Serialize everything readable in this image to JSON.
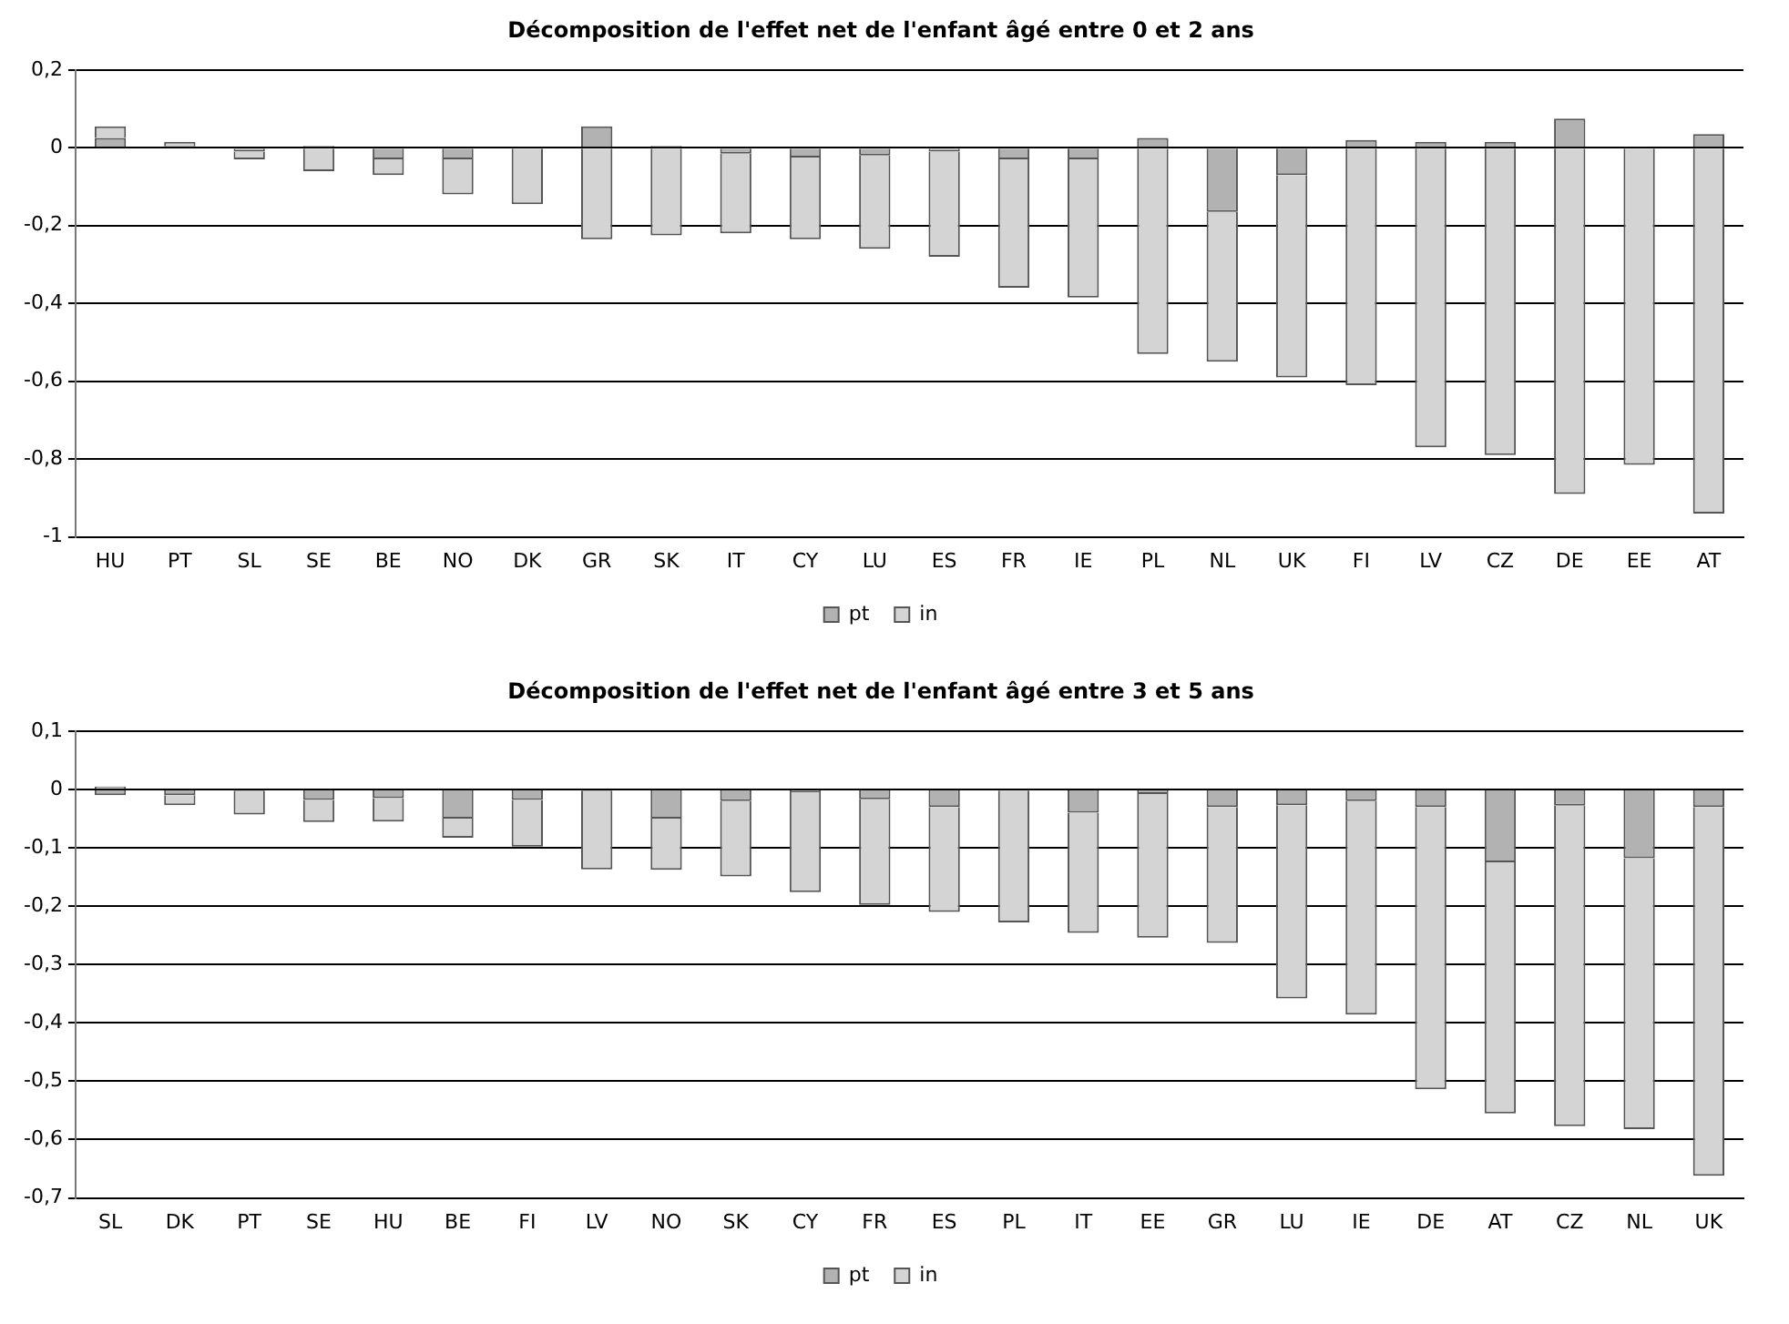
{
  "chart_data": [
    {
      "type": "bar",
      "title": "Décomposition de l'effet net de l'enfant âgé entre 0 et 2 ans",
      "categories": [
        "HU",
        "PT",
        "SL",
        "SE",
        "BE",
        "NO",
        "DK",
        "GR",
        "SK",
        "IT",
        "CY",
        "LU",
        "ES",
        "FR",
        "IE",
        "PL",
        "NL",
        "UK",
        "FI",
        "LV",
        "CZ",
        "DE",
        "EE",
        "AT"
      ],
      "series": [
        {
          "name": "pt",
          "color": "#b2b2b2",
          "values": [
            0.025,
            0.005,
            -0.01,
            0.005,
            -0.03,
            -0.03,
            0.003,
            0.055,
            0.005,
            -0.015,
            -0.025,
            -0.02,
            -0.01,
            -0.03,
            -0.03,
            0.025,
            -0.165,
            -0.07,
            0.02,
            0.015,
            0.015,
            0.075,
            0.003,
            0.035
          ]
        },
        {
          "name": "in",
          "color": "#d4d4d4",
          "values": [
            0.03,
            0.01,
            -0.02,
            -0.06,
            -0.04,
            -0.09,
            -0.145,
            -0.235,
            -0.225,
            -0.205,
            -0.21,
            -0.24,
            -0.27,
            -0.33,
            -0.355,
            -0.53,
            -0.385,
            -0.52,
            -0.61,
            -0.77,
            -0.79,
            -0.89,
            -0.815,
            -0.94
          ]
        }
      ],
      "stacked": true,
      "ylim": [
        -1,
        0.2
      ],
      "yticks": [
        {
          "value": -1,
          "label": "-1"
        },
        {
          "value": -0.8,
          "label": "-0,8"
        },
        {
          "value": -0.6,
          "label": "-0,6"
        },
        {
          "value": -0.4,
          "label": "-0,4"
        },
        {
          "value": -0.2,
          "label": "-0,2"
        },
        {
          "value": 0,
          "label": "0"
        },
        {
          "value": 0.2,
          "label": "0,2"
        }
      ],
      "grid": "y",
      "legend": "bottom"
    },
    {
      "type": "bar",
      "title": "Décomposition de l'effet net de l'enfant âgé entre 3 et 5 ans",
      "categories": [
        "SL",
        "DK",
        "PT",
        "SE",
        "HU",
        "BE",
        "FI",
        "LV",
        "NO",
        "SK",
        "CY",
        "FR",
        "ES",
        "PL",
        "IT",
        "EE",
        "GR",
        "LU",
        "IE",
        "DE",
        "AT",
        "CZ",
        "NL",
        "UK"
      ],
      "series": [
        {
          "name": "pt",
          "color": "#b2b2b2",
          "values": [
            -0.01,
            -0.01,
            -0.003,
            -0.018,
            -0.015,
            -0.05,
            -0.018,
            -0.003,
            -0.05,
            -0.02,
            -0.005,
            -0.017,
            -0.03,
            -0.002,
            -0.04,
            -0.008,
            -0.03,
            -0.027,
            -0.02,
            -0.03,
            -0.125,
            -0.028,
            -0.118,
            -0.03
          ]
        },
        {
          "name": "in",
          "color": "#d4d4d4",
          "values": [
            0.005,
            -0.017,
            -0.04,
            -0.038,
            -0.04,
            -0.033,
            -0.08,
            -0.134,
            -0.088,
            -0.129,
            -0.171,
            -0.181,
            -0.18,
            -0.226,
            -0.206,
            -0.246,
            -0.233,
            -0.331,
            -0.366,
            -0.484,
            -0.43,
            -0.549,
            -0.464,
            -0.632
          ]
        }
      ],
      "stacked": true,
      "ylim": [
        -0.7,
        0.1
      ],
      "yticks": [
        {
          "value": -0.7,
          "label": "-0,7"
        },
        {
          "value": -0.6,
          "label": "-0,6"
        },
        {
          "value": -0.5,
          "label": "-0,5"
        },
        {
          "value": -0.4,
          "label": "-0,4"
        },
        {
          "value": -0.3,
          "label": "-0,3"
        },
        {
          "value": -0.2,
          "label": "-0,2"
        },
        {
          "value": -0.1,
          "label": "-0,1"
        },
        {
          "value": 0,
          "label": "0"
        },
        {
          "value": 0.1,
          "label": "0,1"
        }
      ],
      "grid": "y",
      "legend": "bottom"
    }
  ]
}
